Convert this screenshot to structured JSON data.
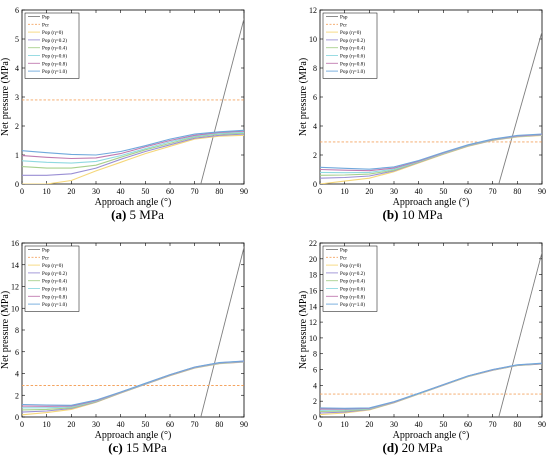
{
  "figure": {
    "captions": [
      {
        "tag": "(a)",
        "text": "5 MPa"
      },
      {
        "tag": "(b)",
        "text": "10 MPa"
      },
      {
        "tag": "(c)",
        "text": "15 MPa"
      },
      {
        "tag": "(d)",
        "text": "20 MPa"
      }
    ]
  },
  "colors": {
    "Psp": "#7f7f7f",
    "Pcr": "#f4a460",
    "Pop0": "#f5d77a",
    "Pop02": "#9a8fd4",
    "Pop04": "#a8d08d",
    "Pop06": "#8fd9e0",
    "Pop08": "#c07ab0",
    "Pop10": "#6fa8dc"
  },
  "chart_data": [
    {
      "type": "line",
      "title": "",
      "caption": "(a) 5 MPa",
      "xlabel": "Approach angle (°)",
      "ylabel": "Net pressure (MPa)",
      "xlim": [
        0,
        90
      ],
      "ylim": [
        0,
        6
      ],
      "xticks": [
        0,
        10,
        20,
        30,
        40,
        50,
        60,
        70,
        80,
        90
      ],
      "yticks": [
        0,
        1,
        2,
        3,
        4,
        5,
        6
      ],
      "legend": "top-left",
      "series": [
        {
          "name": "Psp",
          "style": "solid",
          "x": [
            72.5,
            90
          ],
          "y": [
            0,
            5.7
          ]
        },
        {
          "name": "Pcr",
          "style": "dashed",
          "x": [
            0,
            90
          ],
          "y": [
            2.9,
            2.9
          ]
        },
        {
          "name": "Pop (η=0)",
          "x": [
            0,
            10,
            20,
            30,
            40,
            50,
            60,
            70,
            80,
            90
          ],
          "y": [
            0.0,
            0.0,
            0.12,
            0.45,
            0.75,
            1.05,
            1.3,
            1.55,
            1.65,
            1.68
          ]
        },
        {
          "name": "Pop (η=0.2)",
          "x": [
            0,
            10,
            20,
            30,
            40,
            50,
            60,
            70,
            80,
            90
          ],
          "y": [
            0.3,
            0.3,
            0.35,
            0.55,
            0.85,
            1.12,
            1.35,
            1.58,
            1.68,
            1.72
          ]
        },
        {
          "name": "Pop (η=0.4)",
          "x": [
            0,
            10,
            20,
            30,
            40,
            50,
            60,
            70,
            80,
            90
          ],
          "y": [
            0.6,
            0.55,
            0.55,
            0.65,
            0.92,
            1.18,
            1.4,
            1.62,
            1.72,
            1.75
          ]
        },
        {
          "name": "Pop (η=0.6)",
          "x": [
            0,
            10,
            20,
            30,
            40,
            50,
            60,
            70,
            80,
            90
          ],
          "y": [
            0.8,
            0.75,
            0.72,
            0.78,
            0.98,
            1.22,
            1.45,
            1.65,
            1.75,
            1.78
          ]
        },
        {
          "name": "Pop (η=0.8)",
          "x": [
            0,
            10,
            20,
            30,
            40,
            50,
            60,
            70,
            80,
            90
          ],
          "y": [
            0.98,
            0.92,
            0.88,
            0.9,
            1.05,
            1.28,
            1.5,
            1.68,
            1.78,
            1.82
          ]
        },
        {
          "name": "Pop (η=1.0)",
          "x": [
            0,
            10,
            20,
            30,
            40,
            50,
            60,
            70,
            80,
            90
          ],
          "y": [
            1.15,
            1.08,
            1.02,
            1.0,
            1.12,
            1.32,
            1.55,
            1.72,
            1.8,
            1.85
          ]
        }
      ]
    },
    {
      "type": "line",
      "title": "",
      "caption": "(b) 10 MPa",
      "xlabel": "Approach angle (°)",
      "ylabel": "Net pressure (MPa)",
      "xlim": [
        0,
        90
      ],
      "ylim": [
        0,
        12
      ],
      "xticks": [
        0,
        10,
        20,
        30,
        40,
        50,
        60,
        70,
        80,
        90
      ],
      "yticks": [
        0,
        2,
        4,
        6,
        8,
        10,
        12
      ],
      "legend": "top-left",
      "series": [
        {
          "name": "Psp",
          "style": "solid",
          "x": [
            72.5,
            90
          ],
          "y": [
            0,
            10.5
          ]
        },
        {
          "name": "Pcr",
          "style": "dashed",
          "x": [
            0,
            90
          ],
          "y": [
            2.9,
            2.9
          ]
        },
        {
          "name": "Pop (η=0)",
          "x": [
            0,
            10,
            20,
            30,
            40,
            50,
            60,
            70,
            80,
            90
          ],
          "y": [
            0.0,
            0.2,
            0.4,
            0.85,
            1.45,
            2.05,
            2.6,
            3.0,
            3.25,
            3.35
          ]
        },
        {
          "name": "Pop (η=0.2)",
          "x": [
            0,
            10,
            20,
            30,
            40,
            50,
            60,
            70,
            80,
            90
          ],
          "y": [
            0.4,
            0.45,
            0.55,
            0.9,
            1.5,
            2.08,
            2.62,
            3.02,
            3.27,
            3.37
          ]
        },
        {
          "name": "Pop (η=0.4)",
          "x": [
            0,
            10,
            20,
            30,
            40,
            50,
            60,
            70,
            80,
            90
          ],
          "y": [
            0.6,
            0.62,
            0.68,
            0.95,
            1.52,
            2.1,
            2.64,
            3.04,
            3.28,
            3.38
          ]
        },
        {
          "name": "Pop (η=0.6)",
          "x": [
            0,
            10,
            20,
            30,
            40,
            50,
            60,
            70,
            80,
            90
          ],
          "y": [
            0.8,
            0.78,
            0.8,
            1.02,
            1.55,
            2.12,
            2.66,
            3.06,
            3.3,
            3.4
          ]
        },
        {
          "name": "Pop (η=0.8)",
          "x": [
            0,
            10,
            20,
            30,
            40,
            50,
            60,
            70,
            80,
            90
          ],
          "y": [
            1.0,
            0.95,
            0.92,
            1.1,
            1.58,
            2.15,
            2.68,
            3.08,
            3.32,
            3.42
          ]
        },
        {
          "name": "Pop (η=1.0)",
          "x": [
            0,
            10,
            20,
            30,
            40,
            50,
            60,
            70,
            80,
            90
          ],
          "y": [
            1.15,
            1.08,
            1.02,
            1.18,
            1.62,
            2.18,
            2.7,
            3.1,
            3.35,
            3.45
          ]
        }
      ]
    },
    {
      "type": "line",
      "title": "",
      "caption": "(c) 15 MPa",
      "xlabel": "Approach angle (°)",
      "ylabel": "Net pressure (MPa)",
      "xlim": [
        0,
        90
      ],
      "ylim": [
        0,
        16
      ],
      "xticks": [
        0,
        10,
        20,
        30,
        40,
        50,
        60,
        70,
        80,
        90
      ],
      "yticks": [
        0,
        2,
        4,
        6,
        8,
        10,
        12,
        14,
        16
      ],
      "legend": "top-left",
      "series": [
        {
          "name": "Psp",
          "style": "solid",
          "x": [
            72.5,
            90
          ],
          "y": [
            0,
            15.6
          ]
        },
        {
          "name": "Pcr",
          "style": "dashed",
          "x": [
            0,
            90
          ],
          "y": [
            2.9,
            2.9
          ]
        },
        {
          "name": "Pop (η=0)",
          "x": [
            0,
            10,
            20,
            30,
            40,
            50,
            60,
            70,
            80,
            90
          ],
          "y": [
            0.2,
            0.4,
            0.7,
            1.35,
            2.2,
            3.0,
            3.8,
            4.5,
            4.9,
            5.05
          ]
        },
        {
          "name": "Pop (η=0.2)",
          "x": [
            0,
            10,
            20,
            30,
            40,
            50,
            60,
            70,
            80,
            90
          ],
          "y": [
            0.45,
            0.55,
            0.78,
            1.38,
            2.22,
            3.02,
            3.82,
            4.52,
            4.92,
            5.07
          ]
        },
        {
          "name": "Pop (η=0.4)",
          "x": [
            0,
            10,
            20,
            30,
            40,
            50,
            60,
            70,
            80,
            90
          ],
          "y": [
            0.65,
            0.7,
            0.85,
            1.42,
            2.24,
            3.04,
            3.84,
            4.54,
            4.94,
            5.09
          ]
        },
        {
          "name": "Pop (η=0.6)",
          "x": [
            0,
            10,
            20,
            30,
            40,
            50,
            60,
            70,
            80,
            90
          ],
          "y": [
            0.85,
            0.85,
            0.92,
            1.46,
            2.26,
            3.06,
            3.86,
            4.56,
            4.96,
            5.11
          ]
        },
        {
          "name": "Pop (η=0.8)",
          "x": [
            0,
            10,
            20,
            30,
            40,
            50,
            60,
            70,
            80,
            90
          ],
          "y": [
            1.0,
            0.98,
            1.0,
            1.5,
            2.28,
            3.08,
            3.88,
            4.58,
            4.98,
            5.13
          ]
        },
        {
          "name": "Pop (η=1.0)",
          "x": [
            0,
            10,
            20,
            30,
            40,
            50,
            60,
            70,
            80,
            90
          ],
          "y": [
            1.15,
            1.1,
            1.08,
            1.55,
            2.3,
            3.1,
            3.9,
            4.6,
            5.0,
            5.15
          ]
        }
      ]
    },
    {
      "type": "line",
      "title": "",
      "caption": "(d) 20 MPa",
      "xlabel": "Approach angle (°)",
      "ylabel": "Net pressure (MPa)",
      "xlim": [
        0,
        90
      ],
      "ylim": [
        0,
        22
      ],
      "xticks": [
        0,
        10,
        20,
        30,
        40,
        50,
        60,
        70,
        80,
        90
      ],
      "yticks": [
        0,
        2,
        4,
        6,
        8,
        10,
        12,
        14,
        16,
        18,
        20,
        22
      ],
      "legend": "top-left",
      "series": [
        {
          "name": "Psp",
          "style": "solid",
          "x": [
            72.5,
            90
          ],
          "y": [
            0,
            20.8
          ]
        },
        {
          "name": "Pcr",
          "style": "dashed",
          "x": [
            0,
            90
          ],
          "y": [
            2.9,
            2.9
          ]
        },
        {
          "name": "Pop (η=0)",
          "x": [
            0,
            10,
            20,
            30,
            40,
            50,
            60,
            70,
            80,
            90
          ],
          "y": [
            0.3,
            0.5,
            0.9,
            1.8,
            2.9,
            4.0,
            5.1,
            5.9,
            6.5,
            6.7
          ]
        },
        {
          "name": "Pop (η=0.2)",
          "x": [
            0,
            10,
            20,
            30,
            40,
            50,
            60,
            70,
            80,
            90
          ],
          "y": [
            0.5,
            0.62,
            0.95,
            1.82,
            2.92,
            4.02,
            5.12,
            5.92,
            6.52,
            6.72
          ]
        },
        {
          "name": "Pop (η=0.4)",
          "x": [
            0,
            10,
            20,
            30,
            40,
            50,
            60,
            70,
            80,
            90
          ],
          "y": [
            0.7,
            0.75,
            1.0,
            1.85,
            2.94,
            4.04,
            5.14,
            5.94,
            6.54,
            6.74
          ]
        },
        {
          "name": "Pop (η=0.6)",
          "x": [
            0,
            10,
            20,
            30,
            40,
            50,
            60,
            70,
            80,
            90
          ],
          "y": [
            0.85,
            0.88,
            1.05,
            1.88,
            2.96,
            4.06,
            5.16,
            5.96,
            6.56,
            6.76
          ]
        },
        {
          "name": "Pop (η=0.8)",
          "x": [
            0,
            10,
            20,
            30,
            40,
            50,
            60,
            70,
            80,
            90
          ],
          "y": [
            1.0,
            1.0,
            1.1,
            1.9,
            2.98,
            4.08,
            5.18,
            5.98,
            6.58,
            6.78
          ]
        },
        {
          "name": "Pop (η=1.0)",
          "x": [
            0,
            10,
            20,
            30,
            40,
            50,
            60,
            70,
            80,
            90
          ],
          "y": [
            1.15,
            1.1,
            1.15,
            1.95,
            3.0,
            4.1,
            5.2,
            6.0,
            6.6,
            6.8
          ]
        }
      ]
    }
  ]
}
